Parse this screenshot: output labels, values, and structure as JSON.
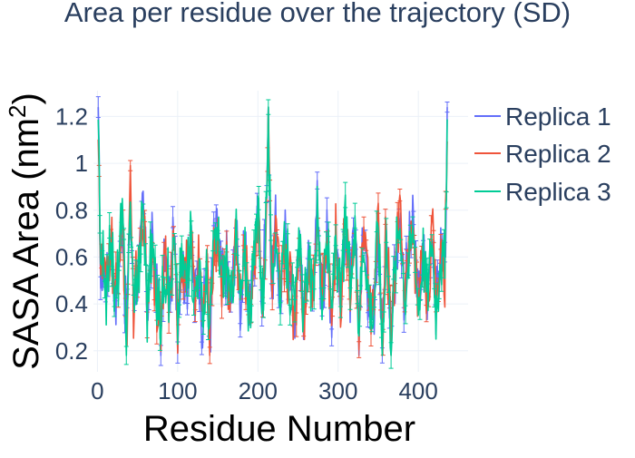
{
  "chart_data": {
    "type": "line",
    "title": "Area per residue over the trajectory (SD)",
    "xlabel": "Residue Number",
    "ylabel": "SASA Area (nm",
    "ylabel_sup": "2",
    "ylabel_close": ")",
    "xlim": [
      -5,
      462
    ],
    "ylim": [
      0.11,
      1.31
    ],
    "x_ticks": [
      0,
      100,
      200,
      300,
      400
    ],
    "x_tick_labels": [
      "0",
      "100",
      "200",
      "300",
      "400"
    ],
    "y_ticks": [
      0.2,
      0.4,
      0.6,
      0.8,
      1.0,
      1.2
    ],
    "y_tick_labels": [
      "0.2",
      "0.4",
      "0.6",
      "0.8",
      "1",
      "1.2"
    ],
    "grid": true,
    "legend_position": "right",
    "error_bars": true,
    "residue_count": 436,
    "series": [
      {
        "name": "Replica 1",
        "color": "#636efa"
      },
      {
        "name": "Replica 2",
        "color": "#ef553b"
      },
      {
        "name": "Replica 3",
        "color": "#00cc96"
      }
    ],
    "profile_points": [
      [
        1,
        1.22
      ],
      [
        4,
        0.5
      ],
      [
        8,
        0.55
      ],
      [
        12,
        0.46
      ],
      [
        17,
        0.72
      ],
      [
        22,
        0.38
      ],
      [
        27,
        0.6
      ],
      [
        31,
        0.78
      ],
      [
        36,
        0.28
      ],
      [
        41,
        0.82
      ],
      [
        45,
        0.42
      ],
      [
        52,
        0.55
      ],
      [
        57,
        0.82
      ],
      [
        62,
        0.38
      ],
      [
        68,
        0.66
      ],
      [
        74,
        0.45
      ],
      [
        79,
        0.3
      ],
      [
        84,
        0.6
      ],
      [
        90,
        0.42
      ],
      [
        95,
        0.68
      ],
      [
        100,
        0.34
      ],
      [
        105,
        0.6
      ],
      [
        111,
        0.5
      ],
      [
        116,
        0.72
      ],
      [
        121,
        0.4
      ],
      [
        126,
        0.62
      ],
      [
        131,
        0.32
      ],
      [
        136,
        0.52
      ],
      [
        140,
        0.25
      ],
      [
        144,
        0.62
      ],
      [
        150,
        0.7
      ],
      [
        156,
        0.48
      ],
      [
        161,
        0.62
      ],
      [
        166,
        0.36
      ],
      [
        172,
        0.72
      ],
      [
        178,
        0.42
      ],
      [
        184,
        0.6
      ],
      [
        190,
        0.38
      ],
      [
        196,
        0.62
      ],
      [
        201,
        0.85
      ],
      [
        205,
        0.4
      ],
      [
        209,
        0.62
      ],
      [
        213,
        1.18
      ],
      [
        217,
        0.48
      ],
      [
        222,
        0.72
      ],
      [
        228,
        0.42
      ],
      [
        234,
        0.66
      ],
      [
        240,
        0.5
      ],
      [
        246,
        0.34
      ],
      [
        252,
        0.7
      ],
      [
        257,
        0.3
      ],
      [
        262,
        0.6
      ],
      [
        268,
        0.45
      ],
      [
        274,
        0.8
      ],
      [
        280,
        0.42
      ],
      [
        286,
        0.66
      ],
      [
        292,
        0.36
      ],
      [
        297,
        0.72
      ],
      [
        303,
        0.42
      ],
      [
        309,
        0.78
      ],
      [
        315,
        0.46
      ],
      [
        320,
        0.66
      ],
      [
        326,
        0.34
      ],
      [
        332,
        0.7
      ],
      [
        338,
        0.44
      ],
      [
        344,
        0.36
      ],
      [
        350,
        0.78
      ],
      [
        355,
        0.24
      ],
      [
        360,
        0.7
      ],
      [
        366,
        0.28
      ],
      [
        371,
        0.55
      ],
      [
        377,
        0.78
      ],
      [
        383,
        0.44
      ],
      [
        388,
        0.6
      ],
      [
        394,
        0.72
      ],
      [
        400,
        0.4
      ],
      [
        406,
        0.62
      ],
      [
        412,
        0.44
      ],
      [
        417,
        0.72
      ],
      [
        422,
        0.38
      ],
      [
        428,
        0.66
      ],
      [
        433,
        0.52
      ],
      [
        436,
        1.18
      ]
    ]
  }
}
